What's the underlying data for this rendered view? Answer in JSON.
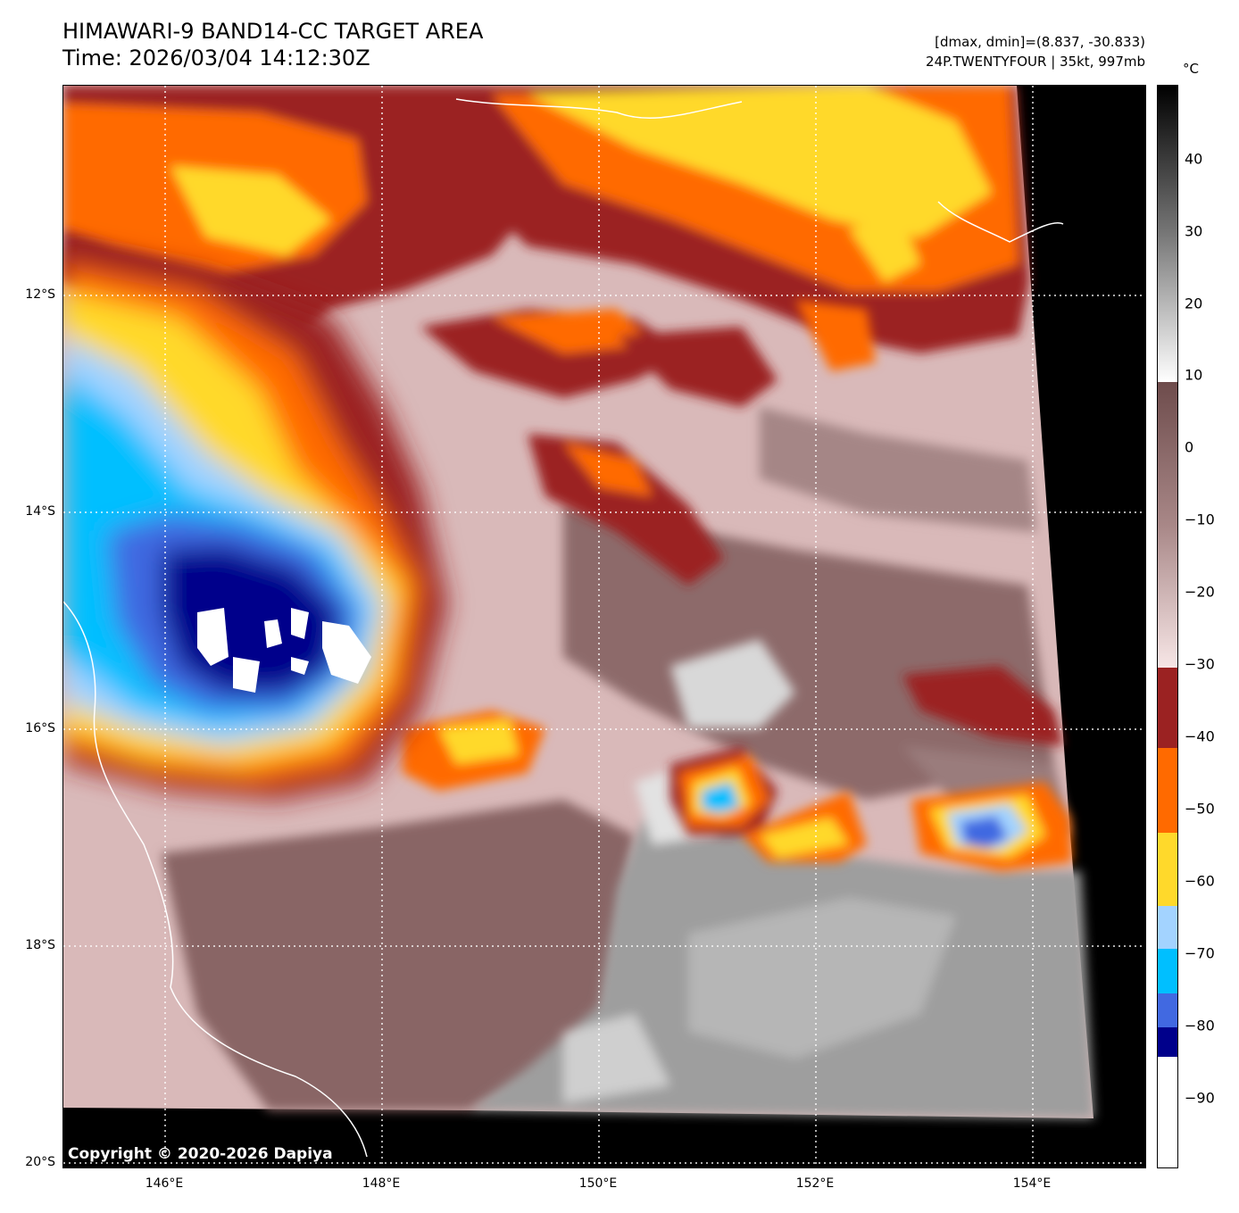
{
  "title": {
    "line1": "HIMAWARI-9 BAND14-CC TARGET AREA",
    "line2": "Time: 2026/03/04 14:12:30Z"
  },
  "meta": {
    "range": "[dmax, dmin]=(8.837, -30.833)",
    "storm": "24P.TWENTYFOUR | 35kt, 997mb"
  },
  "axes": {
    "lat_labels": [
      "12°S",
      "14°S",
      "16°S",
      "18°S",
      "20°S"
    ],
    "lon_labels": [
      "146°E",
      "148°E",
      "150°E",
      "152°E",
      "154°E"
    ]
  },
  "copyright": "Copyright © 2020-2026 Dapiya",
  "colorbar": {
    "unit": "°C",
    "ticks": [
      "40",
      "30",
      "20",
      "10",
      "0",
      "−10",
      "−20",
      "−30",
      "−40",
      "−50",
      "−60",
      "−70",
      "−80",
      "−90"
    ],
    "colors": {
      "warm_black": "#000000",
      "gray_light": "#e6e6e6",
      "brown_dark": "#6e4c4c",
      "pink_light": "#f2dede",
      "dark_red": "#9b2222",
      "orange": "#ff6a00",
      "yellow": "#ffd92b",
      "light_blue": "#a3d3ff",
      "cyan_blue": "#00bfff",
      "royal_blue": "#4169e1",
      "navy": "#00008b",
      "white": "#ffffff"
    }
  }
}
